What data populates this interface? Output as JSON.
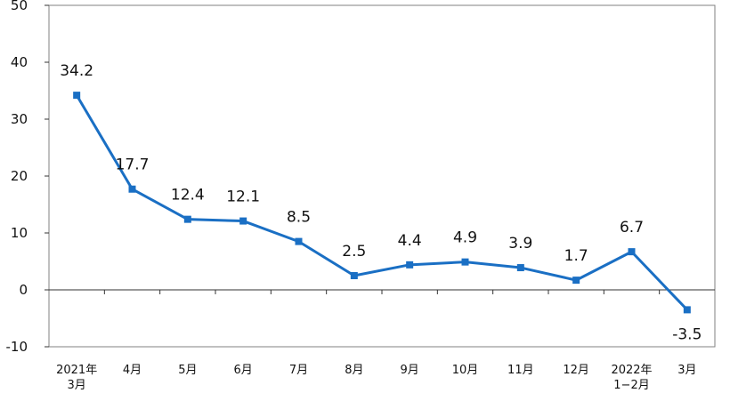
{
  "chart_data": {
    "type": "line",
    "title": "",
    "xlabel": "",
    "ylabel": "",
    "ylim": [
      -10,
      50
    ],
    "yticks": [
      -10,
      0,
      10,
      20,
      30,
      40,
      50
    ],
    "categories": [
      [
        "2021年",
        "3月"
      ],
      [
        "4月"
      ],
      [
        "5月"
      ],
      [
        "6月"
      ],
      [
        "7月"
      ],
      [
        "8月"
      ],
      [
        "9月"
      ],
      [
        "10月"
      ],
      [
        "11月"
      ],
      [
        "12月"
      ],
      [
        "2022年",
        "1−2月"
      ],
      [
        "3月"
      ]
    ],
    "series": [
      {
        "values": [
          34.2,
          17.7,
          12.4,
          12.1,
          8.5,
          2.5,
          4.4,
          4.9,
          3.9,
          1.7,
          6.7,
          -3.5
        ],
        "labels": [
          "34.2",
          "17.7",
          "12.4",
          "12.1",
          "8.5",
          "2.5",
          "4.4",
          "4.9",
          "3.9",
          "1.7",
          "6.7",
          "-3.5"
        ]
      }
    ],
    "line_color": "#1a6fc4",
    "grid": false
  }
}
